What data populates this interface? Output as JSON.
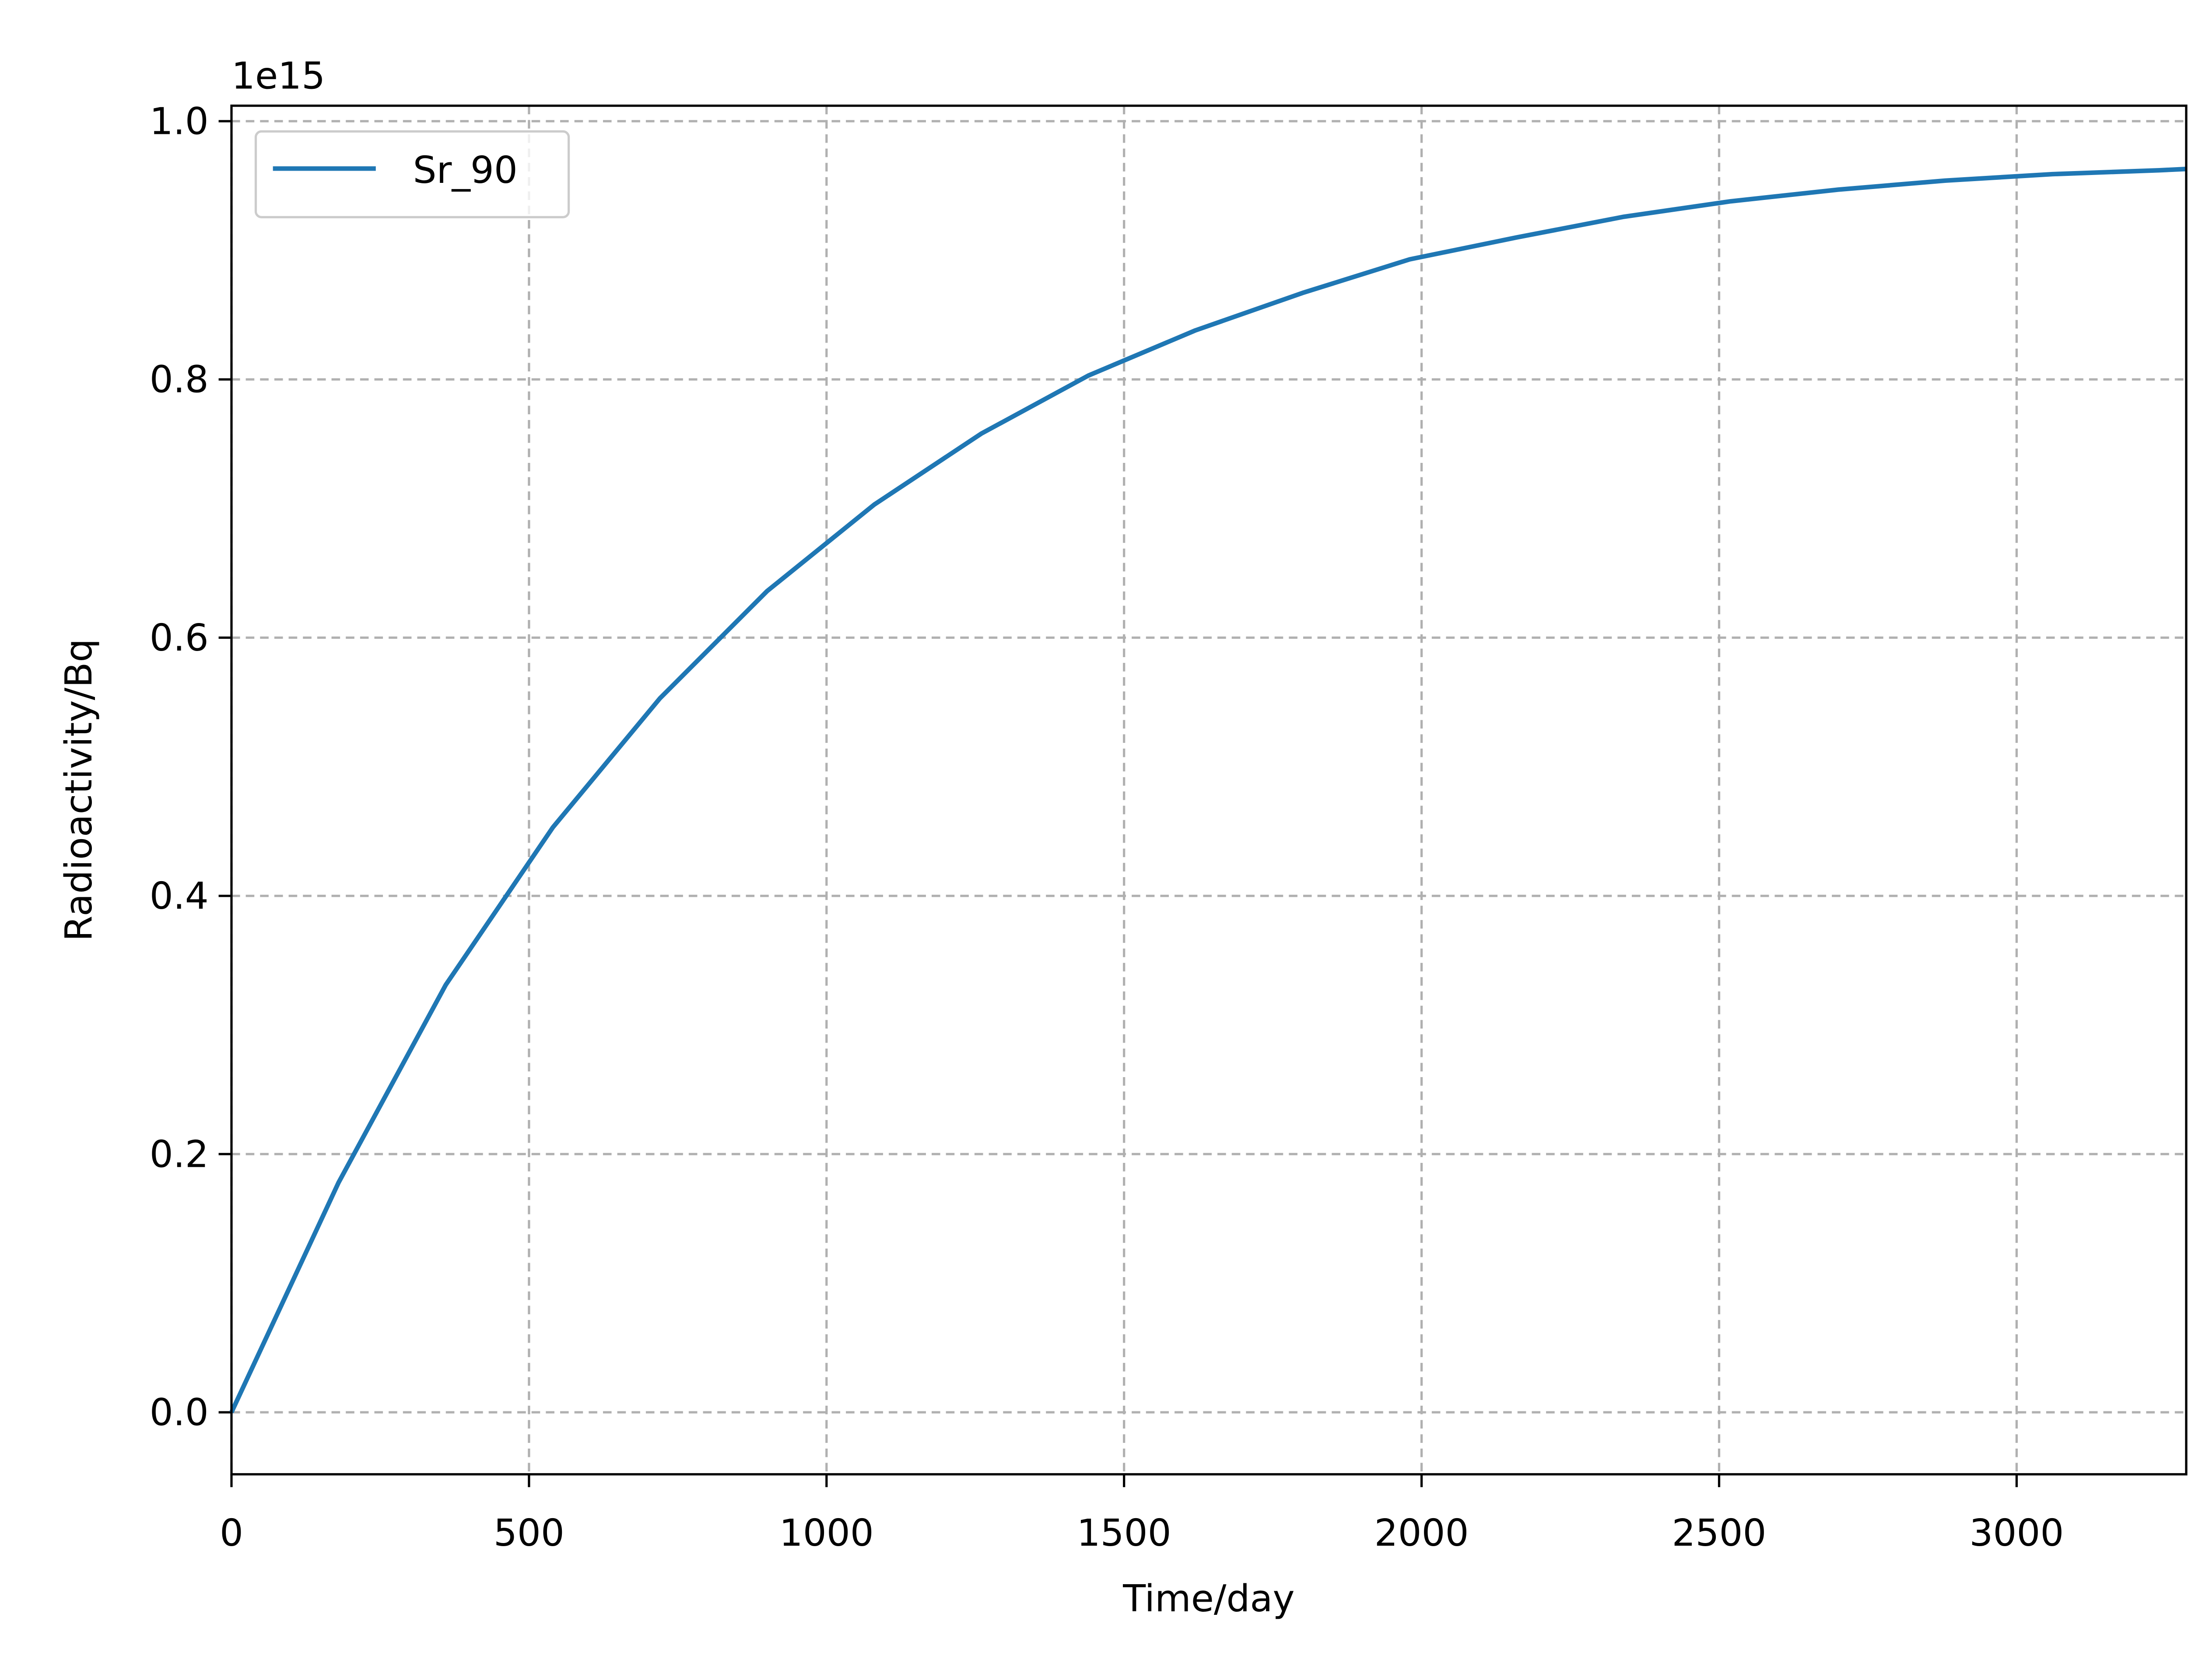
{
  "chart_data": {
    "type": "line",
    "x_label": "Time/day",
    "y_label": "Radioactivity/Bq",
    "offset_label": "1e15",
    "x": [
      0,
      180,
      360,
      540,
      720,
      900,
      1080,
      1260,
      1440,
      1620,
      1800,
      1980,
      2160,
      2340,
      2520,
      2700,
      2880,
      3060,
      3240,
      3285
    ],
    "series": [
      {
        "name": "Sr_90",
        "color": "#1f77b4",
        "values": [
          0,
          0.178,
          0.331,
          0.453,
          0.553,
          0.636,
          0.703,
          0.758,
          0.803,
          0.838,
          0.867,
          0.893,
          0.91,
          0.926,
          0.938,
          0.947,
          0.954,
          0.959,
          0.962,
          0.963
        ]
      }
    ],
    "xlim": [
      0,
      3285
    ],
    "ylim": [
      -0.048,
      1.012
    ],
    "xticks": [
      0,
      500,
      1000,
      1500,
      2000,
      2500,
      3000
    ],
    "yticks": [
      {
        "value": 0,
        "label": "0.0"
      },
      0.2,
      0.4,
      0.6,
      0.8,
      {
        "value": 1,
        "label": "1.0"
      }
    ],
    "grid": true,
    "legend": "upper left"
  }
}
